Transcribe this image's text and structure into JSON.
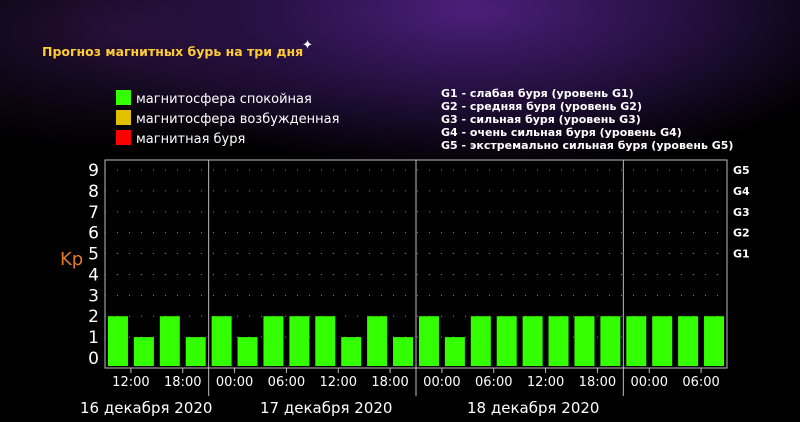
{
  "title": "Прогноз магнитных бурь на три дня",
  "legend": [
    {
      "label": "магнитосфера спокойная",
      "color": "#33ff00"
    },
    {
      "label": "магнитосфера возбужденная",
      "color": "#e0c000"
    },
    {
      "label": "магнитная буря",
      "color": "#ff0000"
    }
  ],
  "g_levels": [
    "G1 - слабая буря (уровень G1)",
    "G2 - средняя буря (уровень G2)",
    "G3 - сильная буря (уровень G3)",
    "G4 - очень сильная буря (уровень G4)",
    "G5 - экстремально сильная буря (уровень G5)"
  ],
  "dates": [
    "16 декабря 2020",
    "17 декабря 2020",
    "18 декабря 2020"
  ],
  "chart_data": {
    "type": "bar",
    "ylabel": "Kp",
    "ylim": [
      0,
      9
    ],
    "yticks": [
      "0",
      "1",
      "2",
      "3",
      "4",
      "5",
      "6",
      "7",
      "8",
      "9"
    ],
    "right_ticks": [
      {
        "value": 5,
        "label": "G1"
      },
      {
        "value": 6,
        "label": "G2"
      },
      {
        "value": 7,
        "label": "G3"
      },
      {
        "value": 8,
        "label": "G4"
      },
      {
        "value": 9,
        "label": "G5"
      }
    ],
    "xtick_labels": [
      "12:00",
      "18:00",
      "00:00",
      "06:00",
      "12:00",
      "18:00",
      "00:00",
      "06:00",
      "12:00",
      "18:00",
      "00:00",
      "06:00"
    ],
    "values": [
      2,
      1,
      2,
      1,
      2,
      1,
      2,
      2,
      2,
      1,
      2,
      1,
      2,
      1,
      2,
      2,
      2,
      2,
      2,
      2,
      2,
      2,
      2,
      2
    ],
    "bar_color": "#33ff00",
    "grid": true
  }
}
